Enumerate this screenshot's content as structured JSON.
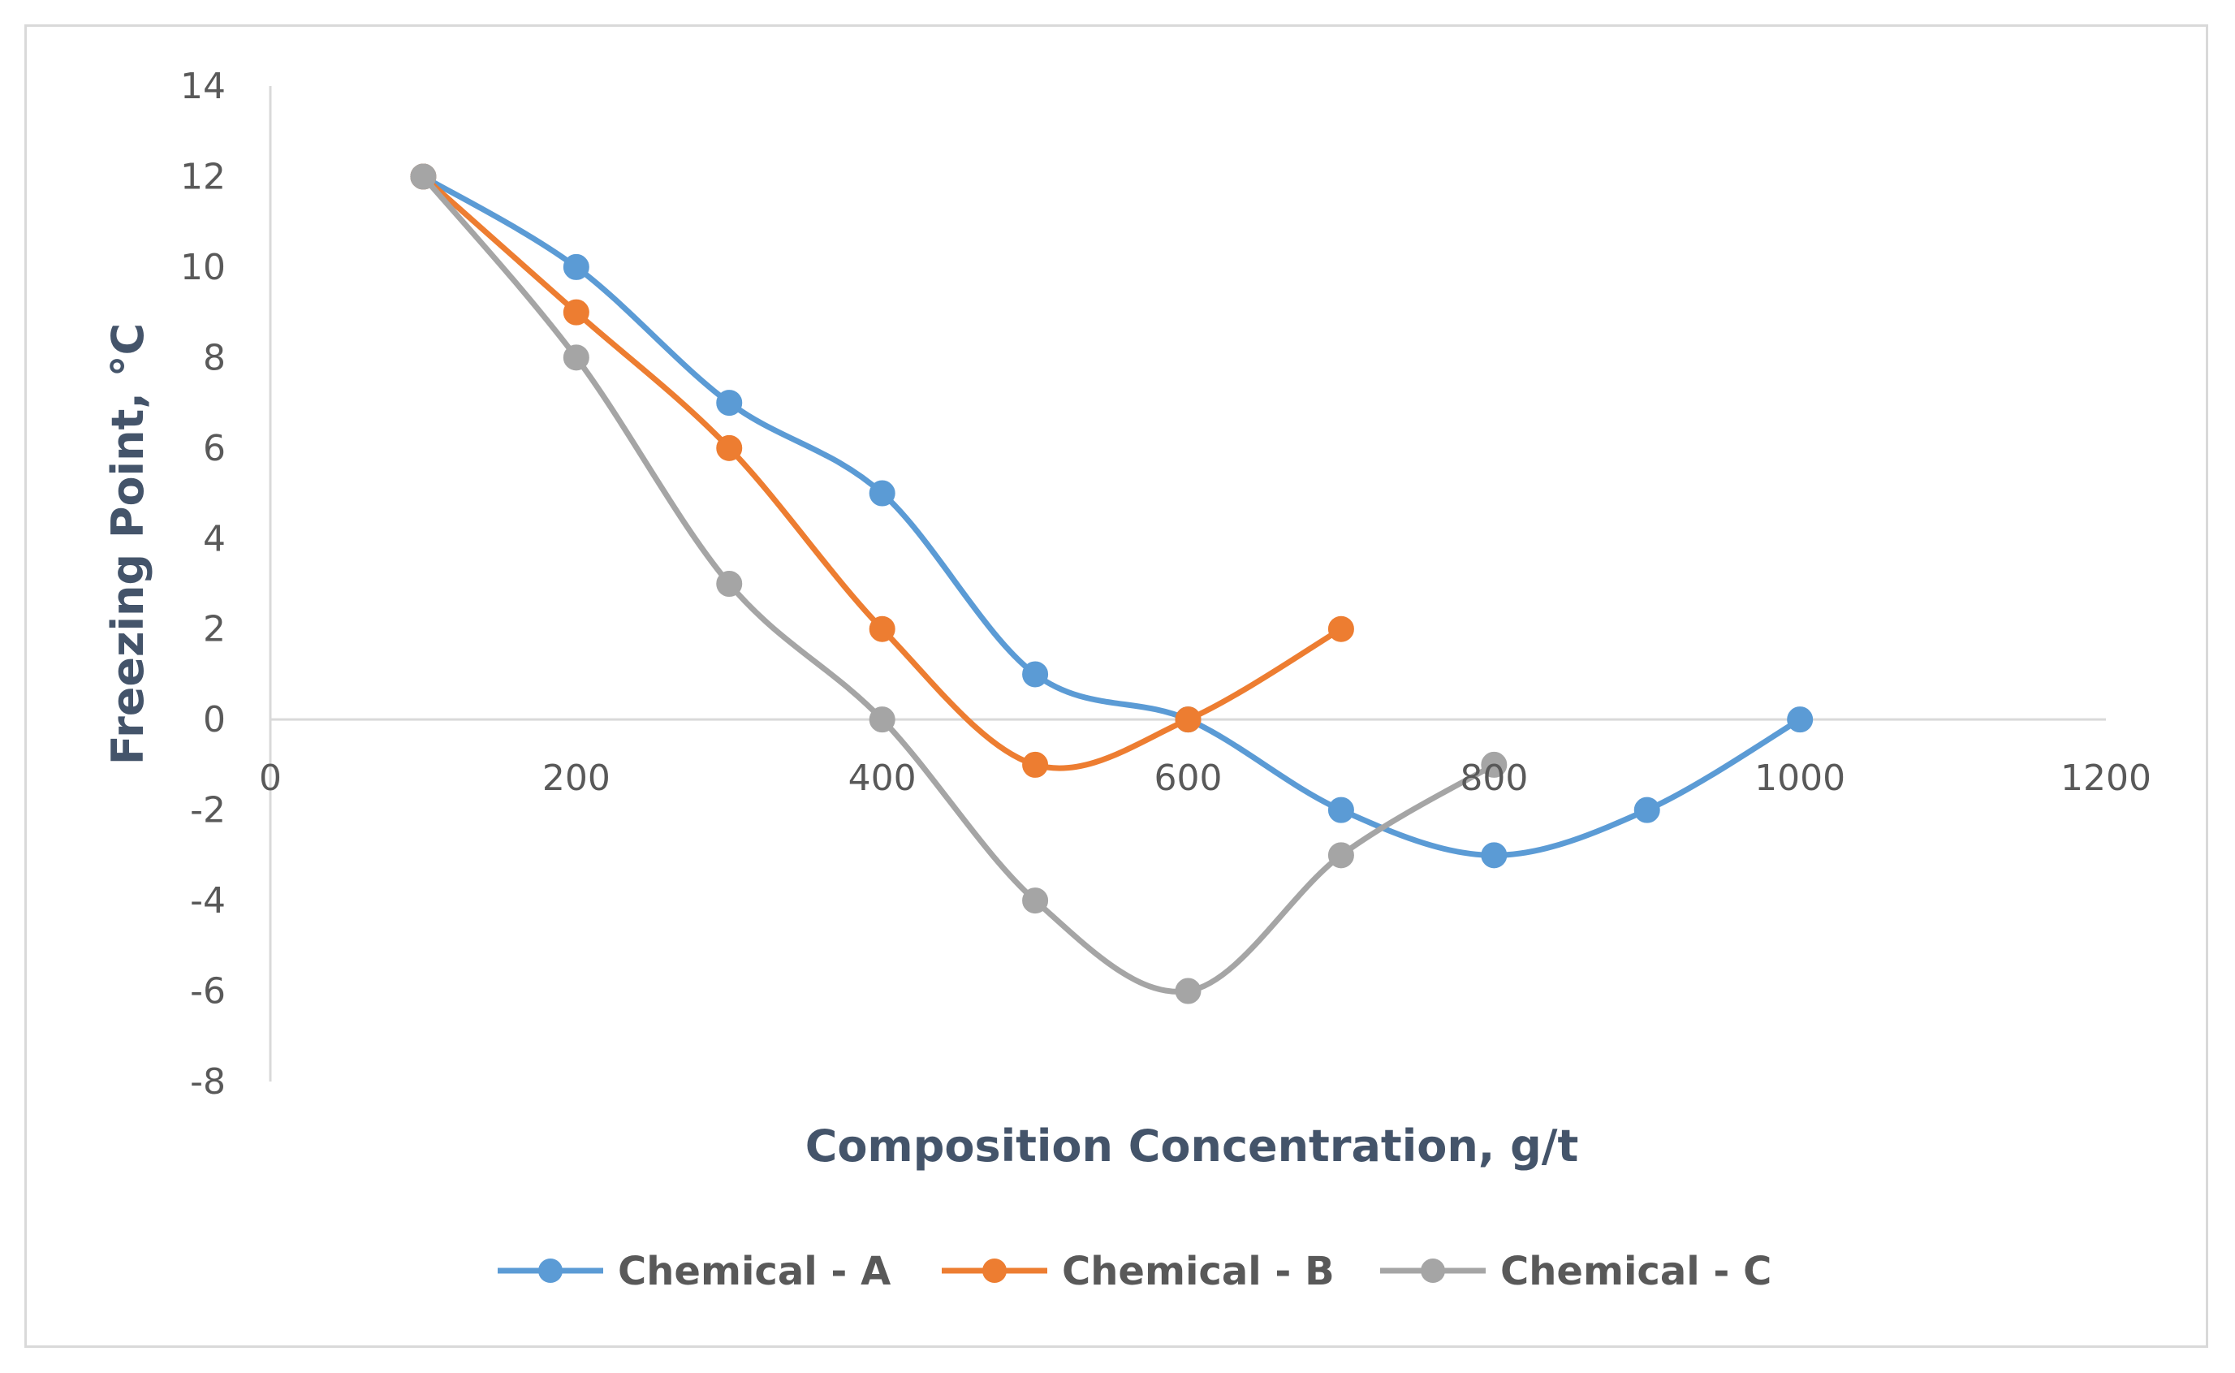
{
  "chart_data": {
    "type": "line",
    "smooth": true,
    "title": "",
    "xlabel": "Composition Concentration, g/t",
    "ylabel": "Freezing Point, °C",
    "xlim": [
      0,
      1200
    ],
    "ylim": [
      -8,
      14
    ],
    "x_ticks": [
      0,
      200,
      400,
      600,
      800,
      1000,
      1200
    ],
    "y_ticks": [
      -8,
      -6,
      -4,
      -2,
      0,
      2,
      4,
      6,
      8,
      10,
      12,
      14
    ],
    "grid": false,
    "legend_position": "bottom",
    "series": [
      {
        "name": "Chemical - A",
        "color": "#5b9bd5",
        "x": [
          100,
          200,
          300,
          400,
          500,
          600,
          700,
          800,
          900,
          1000
        ],
        "y": [
          12,
          10,
          7,
          5,
          1,
          0,
          -2,
          -3,
          -2,
          0
        ]
      },
      {
        "name": "Chemical - B",
        "color": "#ed7d31",
        "x": [
          100,
          200,
          300,
          400,
          500,
          600,
          700
        ],
        "y": [
          12,
          9,
          6,
          2,
          -1,
          0,
          2
        ]
      },
      {
        "name": "Chemical - C",
        "color": "#a5a5a5",
        "x": [
          100,
          200,
          300,
          400,
          500,
          600,
          700,
          800
        ],
        "y": [
          12,
          8,
          3,
          0,
          -4,
          -6,
          -3,
          -1
        ]
      }
    ]
  }
}
